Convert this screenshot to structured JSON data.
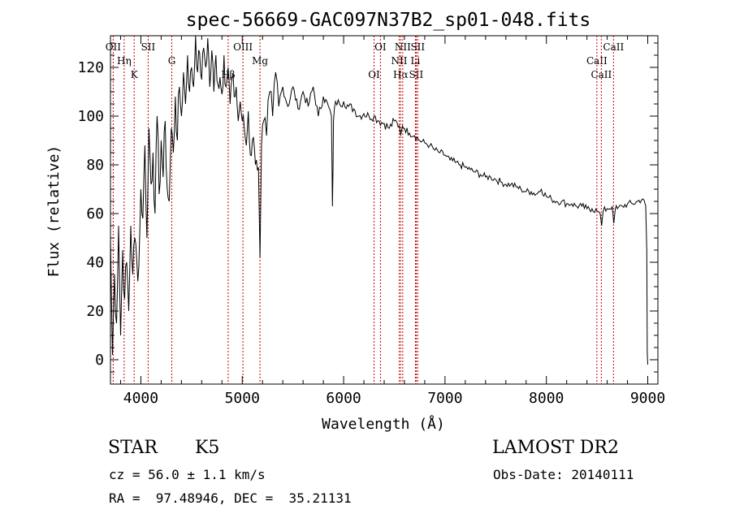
{
  "chart_data": {
    "type": "line",
    "title": "spec-56669-GAC097N37B2_sp01-048.fits",
    "xlabel": "Wavelength (Å)",
    "ylabel": "Flux (relative)",
    "xlim": [
      3700,
      9100
    ],
    "ylim": [
      -10,
      133
    ],
    "xticks": [
      4000,
      5000,
      6000,
      7000,
      8000,
      9000
    ],
    "yticks": [
      0,
      20,
      40,
      60,
      80,
      100,
      120
    ],
    "grid": false,
    "series": [
      {
        "color": "#000000",
        "x": [
          3700,
          3720,
          3740,
          3760,
          3780,
          3800,
          3820,
          3840,
          3860,
          3880,
          3900,
          3920,
          3940,
          3960,
          3980,
          4000,
          4020,
          4040,
          4060,
          4080,
          4100,
          4120,
          4140,
          4160,
          4180,
          4200,
          4220,
          4240,
          4260,
          4280,
          4300,
          4320,
          4340,
          4360,
          4380,
          4400,
          4420,
          4440,
          4460,
          4480,
          4500,
          4520,
          4540,
          4560,
          4580,
          4600,
          4620,
          4640,
          4660,
          4680,
          4700,
          4720,
          4740,
          4760,
          4780,
          4800,
          4820,
          4840,
          4860,
          4880,
          4900,
          4920,
          4940,
          4960,
          4980,
          5000,
          5020,
          5040,
          5060,
          5080,
          5100,
          5120,
          5140,
          5160,
          5175,
          5190,
          5210,
          5240,
          5270,
          5300,
          5330,
          5360,
          5400,
          5450,
          5500,
          5550,
          5600,
          5650,
          5700,
          5750,
          5800,
          5850,
          5880,
          5890,
          5895,
          5900,
          5920,
          5960,
          6000,
          6050,
          6100,
          6150,
          6200,
          6250,
          6300,
          6350,
          6400,
          6450,
          6500,
          6550,
          6563,
          6580,
          6600,
          6650,
          6700,
          6750,
          6800,
          6850,
          6900,
          6950,
          7000,
          7050,
          7100,
          7150,
          7200,
          7250,
          7300,
          7350,
          7400,
          7450,
          7500,
          7550,
          7600,
          7650,
          7700,
          7750,
          7800,
          7850,
          7900,
          7950,
          8000,
          8050,
          8100,
          8150,
          8200,
          8250,
          8300,
          8350,
          8400,
          8450,
          8500,
          8530,
          8545,
          8560,
          8600,
          8650,
          8665,
          8680,
          8700,
          8750,
          8800,
          8850,
          8900,
          8950,
          8980,
          8990,
          8995,
          9000
        ],
        "y": [
          50,
          2,
          35,
          15,
          55,
          10,
          45,
          25,
          40,
          20,
          55,
          35,
          50,
          40,
          38,
          70,
          58,
          88,
          50,
          95,
          72,
          85,
          60,
          100,
          68,
          90,
          75,
          98,
          70,
          65,
          95,
          85,
          108,
          90,
          112,
          100,
          118,
          105,
          125,
          110,
          120,
          112,
          133,
          118,
          126,
          115,
          128,
          120,
          132,
          112,
          127,
          110,
          125,
          113,
          116,
          109,
          125,
          112,
          120,
          105,
          116,
          108,
          112,
          98,
          106,
          98,
          95,
          88,
          102,
          84,
          90,
          87,
          82,
          79,
          42,
          88,
          98,
          92,
          110,
          100,
          118,
          104,
          112,
          104,
          112,
          103,
          110,
          104,
          112,
          100,
          108,
          104,
          100,
          63,
          78,
          98,
          106,
          105,
          106,
          104,
          103,
          100,
          101,
          100,
          100,
          98,
          97,
          95,
          98,
          96,
          92,
          96,
          95,
          93,
          92,
          90,
          89,
          88,
          86,
          85,
          84,
          82,
          81,
          80,
          79,
          78,
          77,
          76,
          75,
          75,
          74,
          73,
          72,
          72,
          71,
          70,
          69,
          69,
          68,
          70,
          67,
          66,
          65,
          65,
          64,
          64,
          63,
          63,
          62,
          62,
          61,
          60,
          55,
          61,
          62,
          63,
          56,
          62,
          62,
          63,
          64,
          64,
          65,
          66,
          63,
          45,
          3,
          -2
        ]
      }
    ],
    "lines": [
      {
        "x": 3727,
        "labels": [
          "OII"
        ]
      },
      {
        "x": 3835,
        "labels": [
          "Hη"
        ]
      },
      {
        "x": 3934,
        "labels": [
          "K"
        ]
      },
      {
        "x": 4072,
        "labels": [
          "SII"
        ]
      },
      {
        "x": 4305,
        "labels": [
          "G"
        ]
      },
      {
        "x": 4861,
        "labels": [
          "Hβ"
        ]
      },
      {
        "x": 5007,
        "labels": [
          "OIII"
        ]
      },
      {
        "x": 5175,
        "labels": [
          "Mg"
        ]
      },
      {
        "x": 6300,
        "labels": [
          "OI"
        ]
      },
      {
        "x": 6363,
        "labels": [
          "OI"
        ]
      },
      {
        "x": 6548,
        "labels": [
          "NII"
        ]
      },
      {
        "x": 6563,
        "labels": [
          "Hα"
        ]
      },
      {
        "x": 6583,
        "labels": [
          "NII"
        ]
      },
      {
        "x": 6708,
        "labels": [
          "Li"
        ]
      },
      {
        "x": 6716,
        "labels": [
          "SII"
        ]
      },
      {
        "x": 6731,
        "labels": [
          "SII"
        ]
      },
      {
        "x": 8498,
        "labels": [
          "CaII"
        ]
      },
      {
        "x": 8542,
        "labels": [
          "CaII"
        ]
      },
      {
        "x": 8662,
        "labels": [
          "CaII"
        ]
      }
    ]
  },
  "info": {
    "object_class": "STAR",
    "subclass": "K5",
    "survey": "LAMOST DR2",
    "cz": "cz = 56.0 ± 1.1 km/s",
    "obs_date": "Obs-Date: 20140111",
    "coords": "RA =  97.48946, DEC =  35.21131"
  }
}
